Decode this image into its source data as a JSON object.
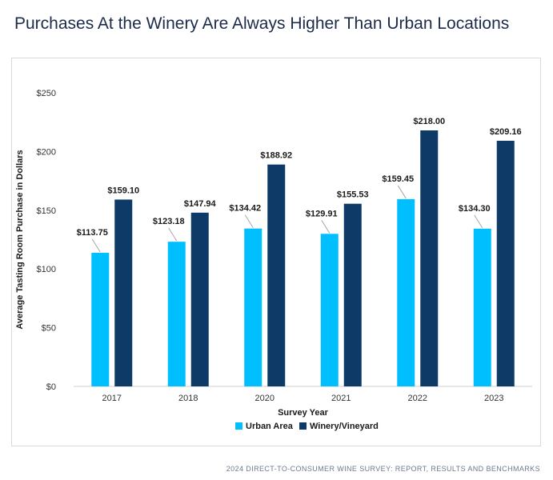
{
  "title": "Purchases At the Winery Are Always Higher Than Urban Locations",
  "footer": "2024 DIRECT-TO-CONSUMER WINE SURVEY: REPORT, RESULTS AND BENCHMARKS",
  "chart_data": {
    "type": "bar",
    "title": "Purchases At the Winery Are Always Higher Than Urban Locations",
    "xlabel": "Survey Year",
    "ylabel": "Average Tasting Room Purchase in Dollars",
    "categories": [
      "2017",
      "2018",
      "2020",
      "2021",
      "2022",
      "2023"
    ],
    "ylim": [
      0,
      250
    ],
    "yticks": [
      0,
      50,
      100,
      150,
      200,
      250
    ],
    "ytick_labels": [
      "$0",
      "$50",
      "$100",
      "$150",
      "$200",
      "$250"
    ],
    "grid": false,
    "legend": "bottom",
    "series": [
      {
        "name": "Urban Area",
        "color": "#00bfff",
        "values": [
          113.75,
          123.18,
          134.42,
          129.91,
          159.45,
          134.3
        ],
        "labels": [
          "$113.75",
          "$123.18",
          "$134.42",
          "$129.91",
          "$159.45",
          "$134.30"
        ]
      },
      {
        "name": "Winery/Vineyard",
        "color": "#0d3a66",
        "values": [
          159.1,
          147.94,
          188.92,
          155.53,
          218.0,
          209.16
        ],
        "labels": [
          "$159.10",
          "$147.94",
          "$188.92",
          "$155.53",
          "$218.00",
          "$209.16"
        ]
      }
    ]
  }
}
